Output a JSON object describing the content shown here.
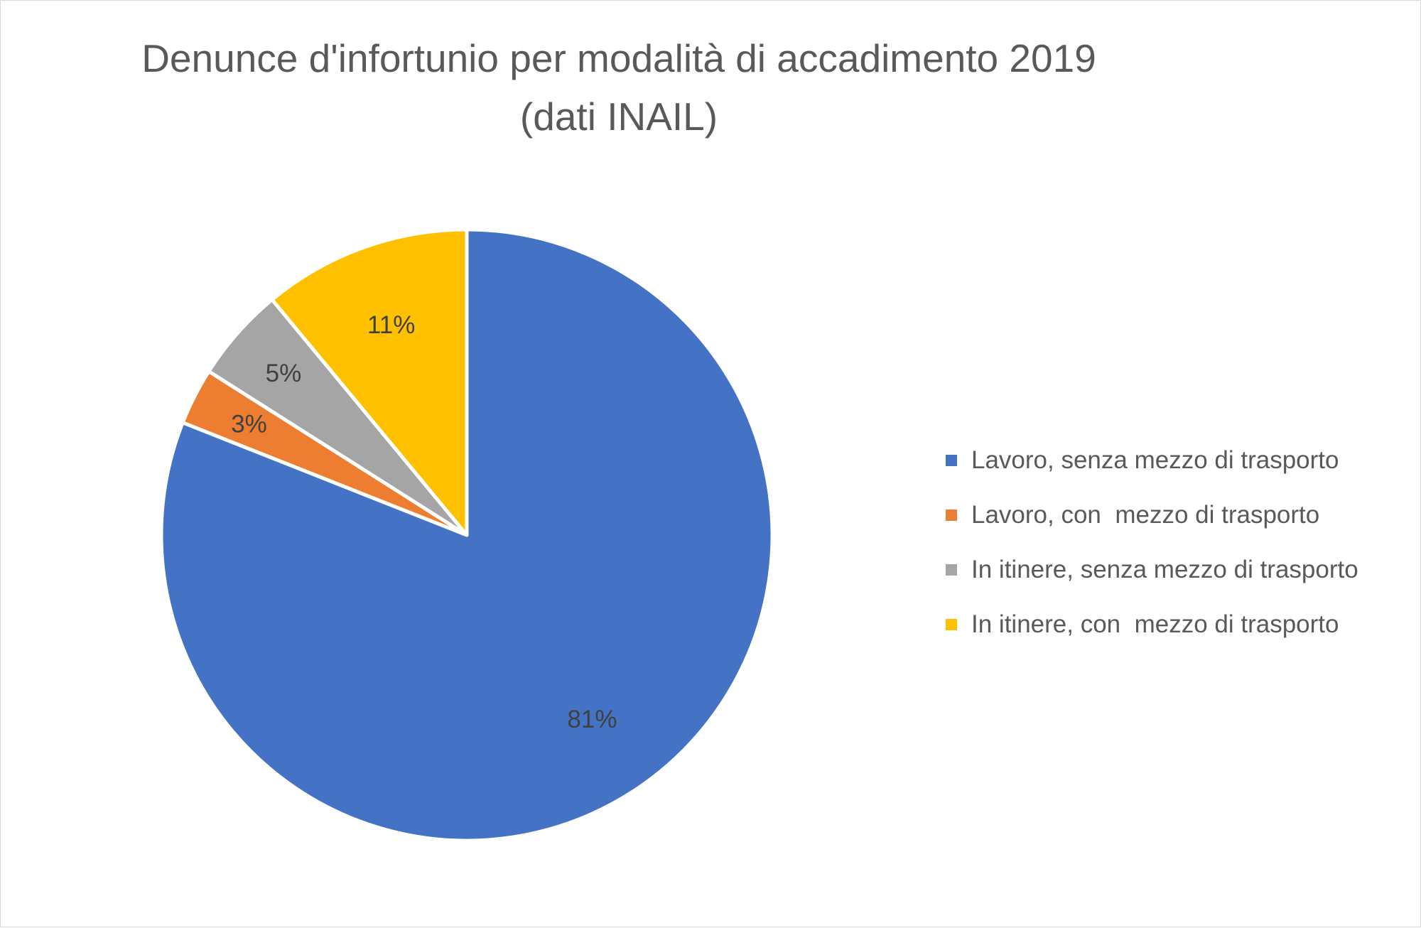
{
  "title": {
    "line1": "Denunce d'infortunio per modalità di accadimento 2019",
    "line2": "(dati INAIL)"
  },
  "chart_data": {
    "type": "pie",
    "title": "Denunce d'infortunio per modalità di accadimento 2019 (dati INAIL)",
    "categories": [
      "Lavoro, senza mezzo di trasporto",
      "Lavoro, con  mezzo di trasporto",
      "In itinere, senza mezzo di trasporto",
      "In itinere, con  mezzo di trasporto"
    ],
    "values": [
      81,
      3,
      5,
      11
    ],
    "labels": [
      "81%",
      "3%",
      "5%",
      "11%"
    ],
    "colors": [
      "#4472C4",
      "#ED7D31",
      "#A5A5A5",
      "#FFC000"
    ],
    "legend_position": "right"
  }
}
